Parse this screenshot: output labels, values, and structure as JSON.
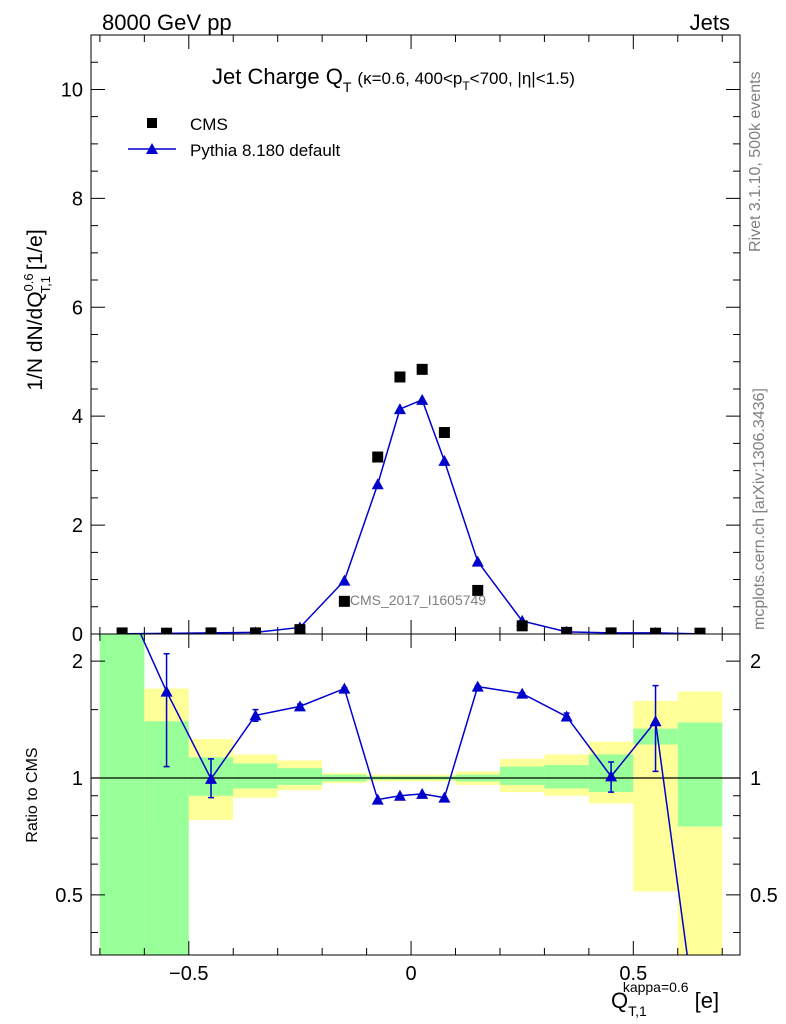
{
  "chart_data": {
    "type": "scatter",
    "header_left": "8000 GeV pp",
    "header_right": "Jets",
    "title_main": "Jet Charge Q",
    "title_main_sub": "T",
    "title_cond_a": "(κ=0.6, 400<p",
    "title_cond_sub": "T",
    "title_cond_b": "<700, |η|<1.5)",
    "watermark": "CMS_2017_I1605749",
    "side_text_top": "Rivet 3.1.10,  500k events",
    "side_text_bottom": "mcplots.cern.ch [arXiv:1306.3436]",
    "ylabel_main": "1/N dN/dQ",
    "ylabel_main_sup": "0.6",
    "ylabel_main_sub": "T,1",
    "ylabel_main_unit": " [1/e]",
    "ylabel_ratio": "Ratio to CMS",
    "xlabel": "Q",
    "xlabel_sub": "T,1",
    "xlabel_sup": "kappa=0.6",
    "xlabel_unit": "[e]",
    "xlim": [
      -0.72,
      0.74
    ],
    "ylim_main": [
      0,
      11
    ],
    "ylim_ratio": [
      0.35,
      2.35
    ],
    "xticks": [
      -0.5,
      0,
      0.5
    ],
    "xtick_labels": [
      "−0.5",
      "0",
      "0.5"
    ],
    "yticks_main": [
      0,
      2,
      4,
      6,
      8,
      10
    ],
    "ytick_main_labels": [
      "0",
      "2",
      "4",
      "6",
      "8",
      "10"
    ],
    "yticks_ratio": [
      0.5,
      1,
      2
    ],
    "ytick_ratio_labels": [
      "0.5",
      "1",
      "2"
    ],
    "legend": [
      {
        "label": "CMS",
        "marker": "square",
        "color": "#000000"
      },
      {
        "label": "Pythia 8.180 default",
        "marker": "triangle",
        "color": "#0000cc"
      }
    ],
    "bins": [
      {
        "lo": -0.7,
        "hi": -0.6,
        "x": -0.65,
        "cms": 0.02,
        "mc": 0.004,
        "ratio": 3.0,
        "err_lo": null,
        "err_hi": null,
        "g_lo": 0.3,
        "g_hi": 2.4,
        "y_lo": 0.3,
        "y_hi": 2.4
      },
      {
        "lo": -0.6,
        "hi": -0.5,
        "x": -0.55,
        "cms": 0.015,
        "mc": 0.012,
        "ratio": 1.67,
        "err_lo": 1.07,
        "err_hi": 2.09,
        "g_lo": 0.3,
        "g_hi": 1.4,
        "y_lo": 0.74,
        "y_hi": 1.7
      },
      {
        "lo": -0.5,
        "hi": -0.4,
        "x": -0.45,
        "cms": 0.02,
        "mc": 0.02,
        "ratio": 0.995,
        "err_lo": 0.89,
        "err_hi": 1.12,
        "g_lo": 0.9,
        "g_hi": 1.13,
        "y_lo": 0.78,
        "y_hi": 1.26
      },
      {
        "lo": -0.4,
        "hi": -0.3,
        "x": -0.35,
        "cms": 0.02,
        "mc": 0.03,
        "ratio": 1.45,
        "err_lo": 1.4,
        "err_hi": 1.5,
        "g_lo": 0.94,
        "g_hi": 1.09,
        "y_lo": 0.89,
        "y_hi": 1.15
      },
      {
        "lo": -0.3,
        "hi": -0.2,
        "x": -0.25,
        "cms": 0.08,
        "mc": 0.12,
        "ratio": 1.53,
        "err_lo": 1.51,
        "err_hi": 1.55,
        "g_lo": 0.96,
        "g_hi": 1.06,
        "y_lo": 0.93,
        "y_hi": 1.11
      },
      {
        "lo": -0.2,
        "hi": -0.1,
        "x": -0.15,
        "cms": 0.6,
        "mc": 0.98,
        "ratio": 1.7,
        "err_lo": 1.69,
        "err_hi": 1.71,
        "g_lo": 0.98,
        "g_hi": 1.02,
        "y_lo": 0.97,
        "y_hi": 1.03
      },
      {
        "lo": -0.1,
        "hi": -0.05,
        "x": -0.075,
        "cms": 3.25,
        "mc": 2.75,
        "ratio": 0.88,
        "err_lo": null,
        "err_hi": null,
        "g_lo": 0.99,
        "g_hi": 1.01,
        "y_lo": 0.98,
        "y_hi": 1.02
      },
      {
        "lo": -0.05,
        "hi": 0.0,
        "x": -0.025,
        "cms": 4.72,
        "mc": 4.13,
        "ratio": 0.9,
        "err_lo": null,
        "err_hi": null,
        "g_lo": 0.99,
        "g_hi": 1.01,
        "y_lo": 0.98,
        "y_hi": 1.02
      },
      {
        "lo": 0.0,
        "hi": 0.05,
        "x": 0.025,
        "cms": 4.86,
        "mc": 4.3,
        "ratio": 0.91,
        "err_lo": null,
        "err_hi": null,
        "g_lo": 0.99,
        "g_hi": 1.01,
        "y_lo": 0.98,
        "y_hi": 1.02
      },
      {
        "lo": 0.05,
        "hi": 0.1,
        "x": 0.075,
        "cms": 3.7,
        "mc": 3.18,
        "ratio": 0.89,
        "err_lo": null,
        "err_hi": null,
        "g_lo": 0.99,
        "g_hi": 1.01,
        "y_lo": 0.98,
        "y_hi": 1.02
      },
      {
        "lo": 0.1,
        "hi": 0.2,
        "x": 0.15,
        "cms": 0.8,
        "mc": 1.33,
        "ratio": 1.72,
        "err_lo": 1.71,
        "err_hi": 1.73,
        "g_lo": 0.98,
        "g_hi": 1.02,
        "y_lo": 0.96,
        "y_hi": 1.04
      },
      {
        "lo": 0.2,
        "hi": 0.3,
        "x": 0.25,
        "cms": 0.15,
        "mc": 0.24,
        "ratio": 1.65,
        "err_lo": 1.64,
        "err_hi": 1.66,
        "g_lo": 0.96,
        "g_hi": 1.07,
        "y_lo": 0.92,
        "y_hi": 1.12
      },
      {
        "lo": 0.3,
        "hi": 0.4,
        "x": 0.35,
        "cms": 0.03,
        "mc": 0.04,
        "ratio": 1.44,
        "err_lo": 1.41,
        "err_hi": 1.47,
        "g_lo": 0.94,
        "g_hi": 1.08,
        "y_lo": 0.9,
        "y_hi": 1.15
      },
      {
        "lo": 0.4,
        "hi": 0.5,
        "x": 0.45,
        "cms": 0.02,
        "mc": 0.02,
        "ratio": 1.01,
        "err_lo": 0.92,
        "err_hi": 1.1,
        "g_lo": 0.92,
        "g_hi": 1.15,
        "y_lo": 0.86,
        "y_hi": 1.24
      },
      {
        "lo": 0.5,
        "hi": 0.6,
        "x": 0.55,
        "cms": 0.015,
        "mc": 0.02,
        "ratio": 1.4,
        "err_lo": 1.04,
        "err_hi": 1.73,
        "g_lo": 1.22,
        "g_hi": 1.34,
        "y_lo": 0.51,
        "y_hi": 1.58
      },
      {
        "lo": 0.6,
        "hi": 0.7,
        "x": 0.65,
        "cms": 0.015,
        "mc": 0.003,
        "ratio": 0.2,
        "err_lo": null,
        "err_hi": null,
        "g_lo": 0.75,
        "g_hi": 1.39,
        "y_lo": 0.3,
        "y_hi": 1.67
      }
    ]
  }
}
